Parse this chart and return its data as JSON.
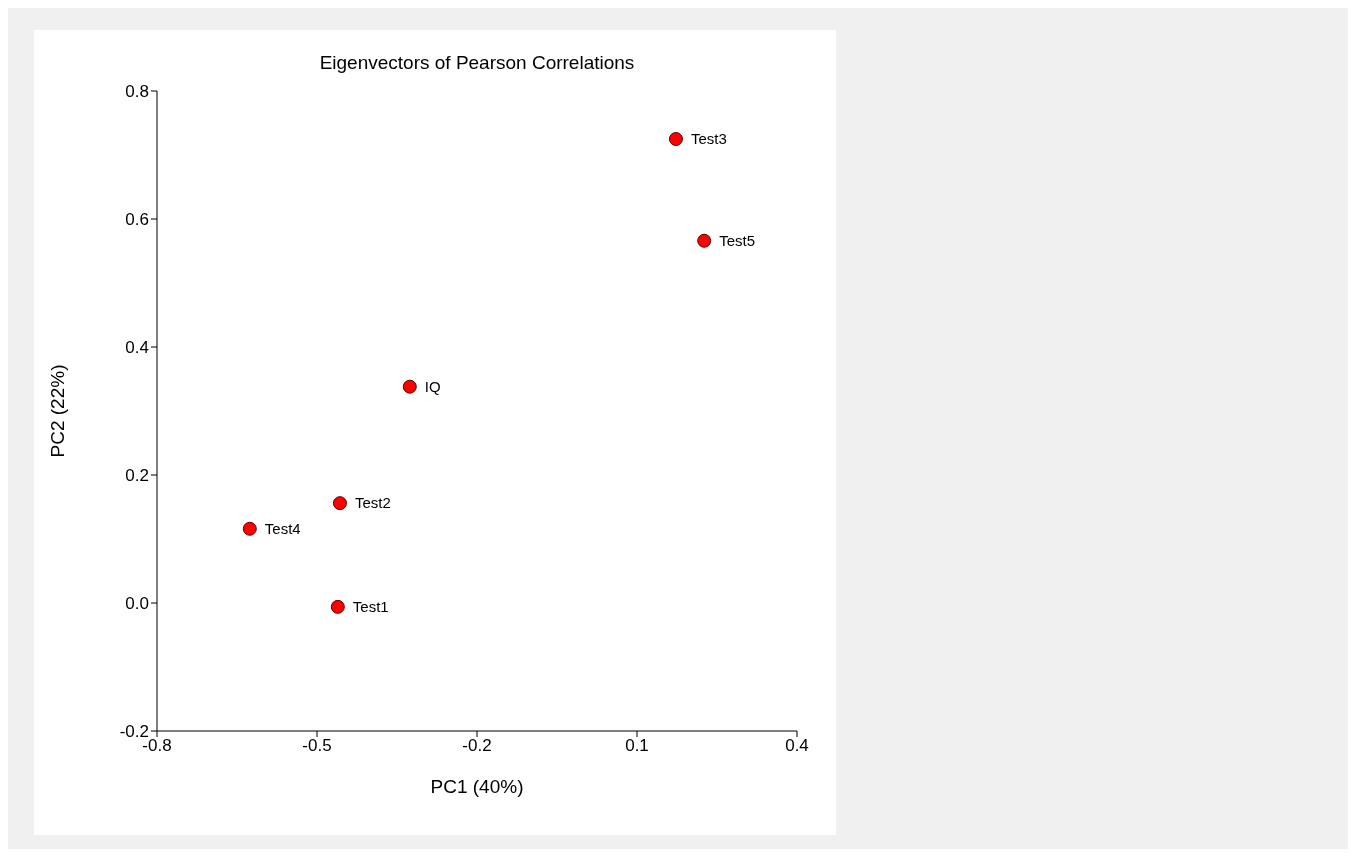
{
  "chart_data": {
    "type": "scatter",
    "title": "Eigenvectors of Pearson Correlations",
    "xlabel": "PC1 (40%)",
    "ylabel": "PC2 (22%)",
    "series": [
      {
        "name": "Test3",
        "color": "#ff0000",
        "x": [
          0.173
        ],
        "values": [
          0.725
        ]
      },
      {
        "name": "Test5",
        "color": "#ff0000",
        "x": [
          0.226
        ],
        "values": [
          0.566
        ]
      },
      {
        "name": "IQ",
        "color": "#ff0000",
        "x": [
          -0.326
        ],
        "values": [
          0.338
        ]
      },
      {
        "name": "Test2",
        "color": "#ff0000",
        "x": [
          -0.457
        ],
        "values": [
          0.156
        ]
      },
      {
        "name": "Test4",
        "color": "#ff0000",
        "x": [
          -0.626
        ],
        "values": [
          0.116
        ]
      },
      {
        "name": "Test1",
        "color": "#ff0000",
        "x": [
          -0.461
        ],
        "values": [
          -0.006
        ]
      }
    ],
    "xlim": [
      -0.8,
      0.4
    ],
    "xticks": [
      -0.8,
      -0.5,
      -0.2,
      0.1,
      0.4
    ],
    "ylim": [
      -0.2,
      0.8
    ],
    "yticks": [
      -0.2,
      {
        "value": 0,
        "label": "0.0"
      },
      0.2,
      0.4,
      0.6,
      0.8
    ],
    "grid": false,
    "legend": false,
    "marker": "circle"
  }
}
